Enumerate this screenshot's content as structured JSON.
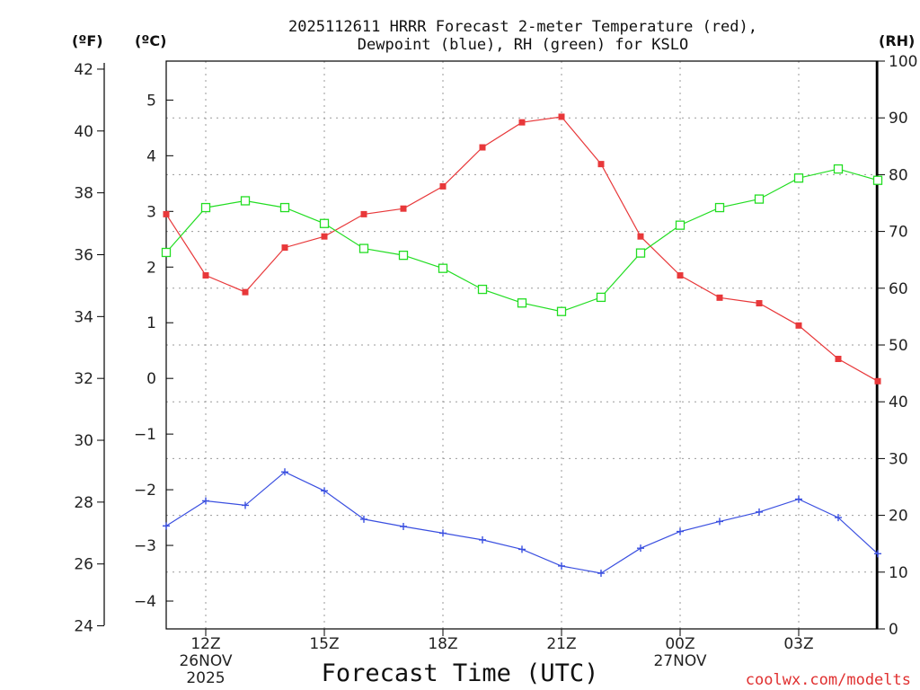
{
  "chart_data": {
    "type": "line",
    "title_line1": "2025112611 HRRR Forecast 2-meter Temperature (red),",
    "title_line2": "Dewpoint (blue), RH (green) for KSLO",
    "xlabel": "Forecast Time (UTC)",
    "credit": "coolwx.com/modelts",
    "unit_f": "(ºF)",
    "unit_c": "(ºC)",
    "unit_rh": "(RH)",
    "x_hours": [
      11,
      12,
      13,
      14,
      15,
      16,
      17,
      18,
      19,
      20,
      21,
      22,
      23,
      24,
      25,
      26,
      27,
      28,
      29
    ],
    "xlim": [
      11,
      29
    ],
    "x_ticks": [
      {
        "hour": 12,
        "label": "12Z",
        "date": "26NOV",
        "year": "2025"
      },
      {
        "hour": 15,
        "label": "15Z",
        "date": "",
        "year": ""
      },
      {
        "hour": 18,
        "label": "18Z",
        "date": "",
        "year": ""
      },
      {
        "hour": 21,
        "label": "21Z",
        "date": "",
        "year": ""
      },
      {
        "hour": 24,
        "label": "00Z",
        "date": "27NOV",
        "year": ""
      },
      {
        "hour": 27,
        "label": "03Z",
        "date": "",
        "year": ""
      }
    ],
    "ylim_c": [
      -4.5,
      5.7
    ],
    "ylim_f": [
      23.9,
      42.26
    ],
    "ylim_rh": [
      0,
      100
    ],
    "yticks_c": [
      "5",
      "4",
      "3",
      "2",
      "1",
      "0",
      "−1",
      "−2",
      "−3",
      "−4"
    ],
    "yticks_c_values": [
      5,
      4,
      3,
      2,
      1,
      0,
      -1,
      -2,
      -3,
      -4
    ],
    "yticks_f": [
      "42",
      "40",
      "38",
      "36",
      "34",
      "32",
      "30",
      "28",
      "26",
      "24"
    ],
    "yticks_f_values": [
      42,
      40,
      38,
      36,
      34,
      32,
      30,
      28,
      26,
      24
    ],
    "yticks_rh": [
      "100",
      "90",
      "80",
      "70",
      "60",
      "50",
      "40",
      "30",
      "20",
      "10",
      "0"
    ],
    "yticks_rh_values": [
      100,
      90,
      80,
      70,
      60,
      50,
      40,
      30,
      20,
      10,
      0
    ],
    "series": [
      {
        "name": "Temperature",
        "unit": "C",
        "color": "#e8383a",
        "marker": "filled-square",
        "values": [
          2.95,
          1.85,
          1.55,
          2.35,
          2.55,
          2.95,
          3.05,
          3.45,
          4.15,
          4.6,
          4.7,
          3.85,
          2.55,
          1.85,
          1.45,
          1.35,
          0.95,
          0.35,
          -0.05
        ]
      },
      {
        "name": "Dewpoint",
        "unit": "C",
        "color": "#3a4fe0",
        "marker": "plus",
        "values": [
          -2.65,
          -2.2,
          -2.28,
          -1.68,
          -2.02,
          -2.53,
          -2.66,
          -2.78,
          -2.9,
          -3.07,
          -3.37,
          -3.5,
          -3.05,
          -2.75,
          -2.57,
          -2.4,
          -2.17,
          -2.5,
          -3.15
        ]
      },
      {
        "name": "RH",
        "unit": "%",
        "color": "#22dd22",
        "marker": "open-square",
        "values": [
          66.3,
          74.2,
          75.4,
          74.2,
          71.4,
          67.0,
          65.8,
          63.5,
          59.8,
          57.4,
          55.9,
          58.4,
          66.2,
          71.1,
          74.2,
          75.7,
          79.4,
          81.0,
          79.0
        ]
      }
    ]
  }
}
